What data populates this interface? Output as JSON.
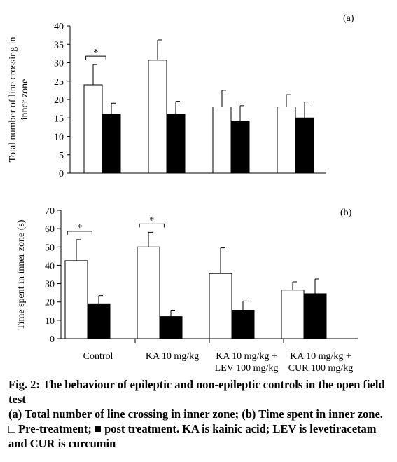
{
  "chart_data": [
    {
      "type": "bar",
      "panel_label": "(a)",
      "ylabel": "Total number of line crossing in\ninner zone",
      "categories": [
        null,
        null,
        null,
        null
      ],
      "series": [
        {
          "name": "Pre-treatment",
          "color": "#ffffff",
          "values": [
            24,
            30.7,
            18,
            18
          ],
          "errors": [
            5.5,
            5.5,
            4.5,
            3.3
          ]
        },
        {
          "name": "post treatment",
          "color": "#000000",
          "values": [
            16,
            16,
            14,
            15
          ],
          "errors": [
            3,
            3.5,
            4.3,
            4.3
          ]
        }
      ],
      "significance": [
        "*",
        null,
        null,
        null
      ],
      "ylim": [
        0,
        40
      ],
      "yticks": [
        0,
        5,
        10,
        15,
        20,
        25,
        30,
        35,
        40
      ]
    },
    {
      "type": "bar",
      "panel_label": "(b)",
      "ylabel": "Time spent in inner zone (s)",
      "categories": [
        "Control",
        "KA 10 mg/kg",
        "KA 10 mg/kg +\nLEV 100 mg/kg",
        "KA 10 mg/kg +\nCUR 100 mg/kg"
      ],
      "series": [
        {
          "name": "Pre-treatment",
          "color": "#ffffff",
          "values": [
            42.5,
            50,
            35.5,
            26.5
          ],
          "errors": [
            11.5,
            8,
            14,
            4.5
          ]
        },
        {
          "name": "post treatment",
          "color": "#000000",
          "values": [
            19,
            12,
            15.5,
            24.5
          ],
          "errors": [
            4.5,
            3.5,
            5,
            8
          ]
        }
      ],
      "significance": [
        "*",
        "*",
        null,
        null
      ],
      "ylim": [
        0,
        70
      ],
      "yticks": [
        0,
        10,
        20,
        30,
        40,
        50,
        60,
        70
      ]
    }
  ],
  "caption": {
    "title": "Fig. 2: The behaviour of epileptic and non-epileptic controls in the open field test",
    "intro": "(a) Total number of line crossing in inner zone; (b) Time spent in inner zone. □",
    "between": "; ■",
    "outro": ". KA is kainic acid; LEV is levetiracetam and CUR is curcumin"
  }
}
